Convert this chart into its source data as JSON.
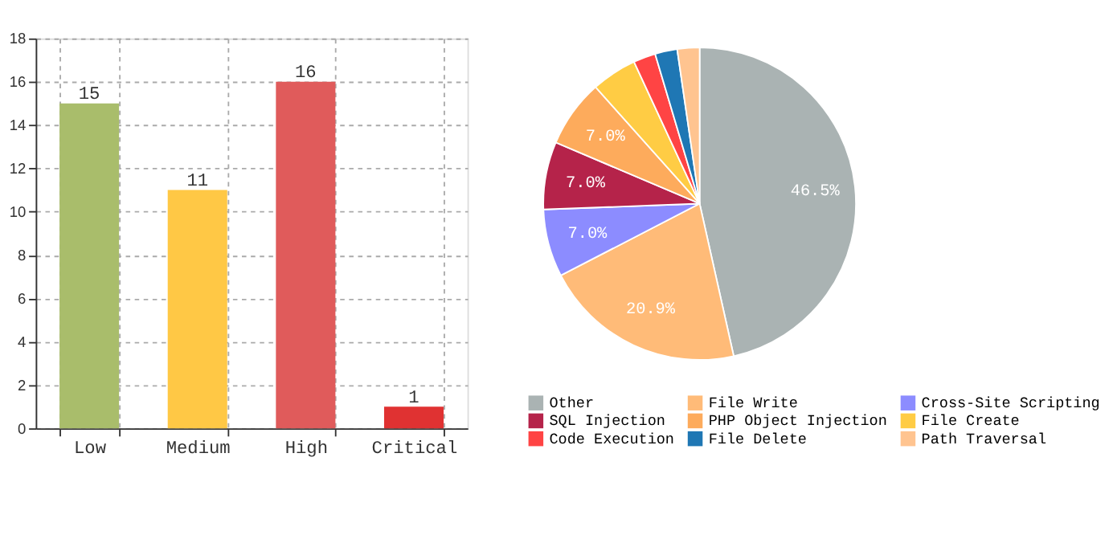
{
  "chart_data": [
    {
      "type": "bar",
      "categories": [
        "Low",
        "Medium",
        "High",
        "Critical"
      ],
      "values": [
        15,
        11,
        16,
        1
      ],
      "colors": [
        "#a9bd6b",
        "#ffc845",
        "#e05b5b",
        "#e03232"
      ],
      "ylim": [
        0,
        18
      ],
      "yticks": [
        0,
        2,
        4,
        6,
        8,
        10,
        12,
        14,
        16,
        18
      ],
      "grid": true,
      "data_labels": true
    },
    {
      "type": "pie",
      "categories": [
        "Other",
        "File Write",
        "Cross-Site Scripting",
        "SQL Injection",
        "PHP Object Injection",
        "File Create",
        "Code Execution",
        "File Delete",
        "Path Traversal"
      ],
      "values": [
        46.5,
        20.9,
        7.0,
        7.0,
        7.0,
        4.7,
        2.3,
        2.3,
        2.3
      ],
      "colors": [
        "#aab3b3",
        "#ffbb78",
        "#8c8cff",
        "#b5234a",
        "#fdab5c",
        "#ffcc44",
        "#ff4444",
        "#1f77b4",
        "#ffc490"
      ],
      "value_labels": [
        "46.5%",
        "20.9%",
        "7.0%",
        "7.0%",
        "7.0%",
        null,
        null,
        null,
        null
      ],
      "legend": "bottom"
    }
  ]
}
